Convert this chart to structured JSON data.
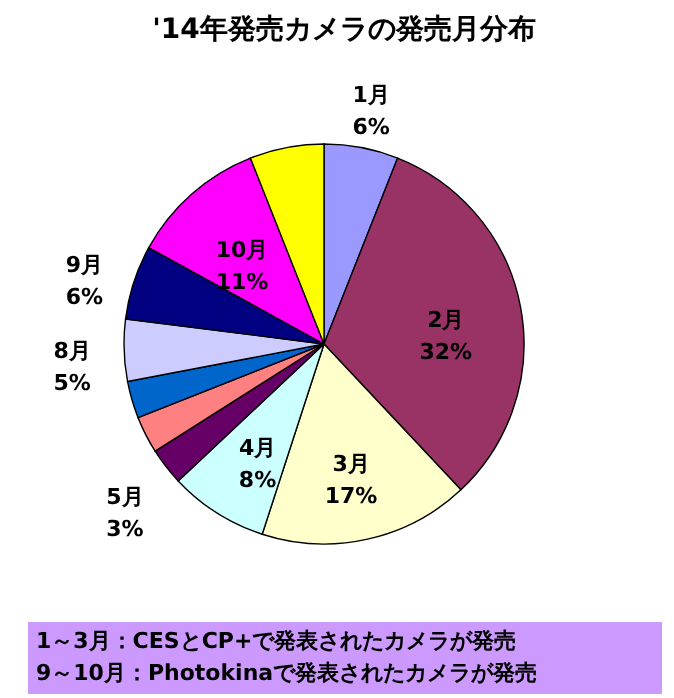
{
  "chart_data": {
    "type": "pie",
    "title": "'14年発売カメラの発売月分布",
    "categories": [
      "1月",
      "2月",
      "3月",
      "4月",
      "5月",
      null,
      null,
      "8月",
      "9月",
      "10月",
      null
    ],
    "values": [
      6,
      32,
      17,
      8,
      3,
      3,
      3,
      5,
      6,
      11,
      6
    ],
    "value_labels": [
      "6%",
      "32%",
      "17%",
      "8%",
      "3%",
      null,
      null,
      "5%",
      "6%",
      "11%",
      null
    ],
    "colors": [
      "#9999ff",
      "#993366",
      "#ffffcc",
      "#ccffff",
      "#660066",
      "#ff8080",
      "#0066cc",
      "#ccccff",
      "#000080",
      "#ff00ff",
      "#ffff00"
    ],
    "legend": false,
    "annotations": [
      "1～3月：CESとCP+で発表されたカメラが発売",
      "9～10月：Photokinaで発表されたカメラが発売"
    ]
  }
}
